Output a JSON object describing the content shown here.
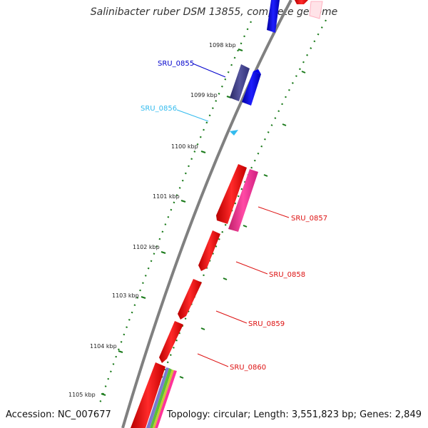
{
  "title": "Salinibacter ruber DSM 13855, complete genome",
  "footer": {
    "accession": "Accession: NC_007677",
    "topology": "Topology: circular; Length: 3,551,823 bp; Genes: 2,849"
  },
  "kbp_labels": [
    "1098 kbp",
    "1099 kbp",
    "1100 kbp",
    "1101 kbp",
    "1102 kbp",
    "1103 kbp",
    "1104 kbp",
    "1105 kbp"
  ],
  "genes": [
    {
      "name": "SRU_0855",
      "color": "#0000cc"
    },
    {
      "name": "SRU_0856",
      "color": "#33bbee"
    },
    {
      "name": "SRU_0857",
      "color": "#dd1111"
    },
    {
      "name": "SRU_0858",
      "color": "#dd1111"
    },
    {
      "name": "SRU_0859",
      "color": "#dd1111"
    },
    {
      "name": "SRU_0860",
      "color": "#dd1111"
    }
  ],
  "colors": {
    "backbone": "#808080",
    "tick": "#1a7a1a",
    "forward_red": "#ff1a1a",
    "pink": "#ff3399",
    "blue": "#0000ee",
    "dark_blue": "#3a3a8a",
    "cyan": "#33bbee"
  }
}
